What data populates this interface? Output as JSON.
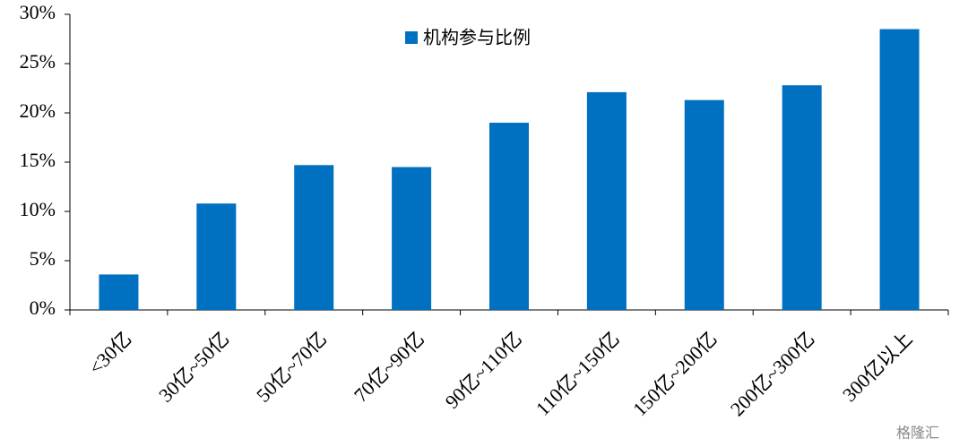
{
  "chart_data": {
    "type": "bar",
    "categories": [
      "<30亿",
      "30亿~50亿",
      "50亿~70亿",
      "70亿~90亿",
      "90亿~110亿",
      "110亿~150亿",
      "150亿~200亿",
      "200亿~300亿",
      "300亿以上"
    ],
    "series": [
      {
        "name": "机构参与比例",
        "color": "#0070c0",
        "values": [
          3.6,
          10.8,
          14.7,
          14.5,
          19.0,
          22.1,
          21.3,
          22.8,
          28.5
        ]
      }
    ],
    "ylim": [
      0,
      30
    ],
    "yticks": [
      {
        "value": 0,
        "label": "0%"
      },
      {
        "value": 5,
        "label": "5%"
      },
      {
        "value": 10,
        "label": "10%"
      },
      {
        "value": 15,
        "label": "15%"
      },
      {
        "value": 20,
        "label": "20%"
      },
      {
        "value": 25,
        "label": "25%"
      },
      {
        "value": 30,
        "label": "30%"
      }
    ],
    "grid": false,
    "legend": "top"
  },
  "watermark": "格隆汇"
}
